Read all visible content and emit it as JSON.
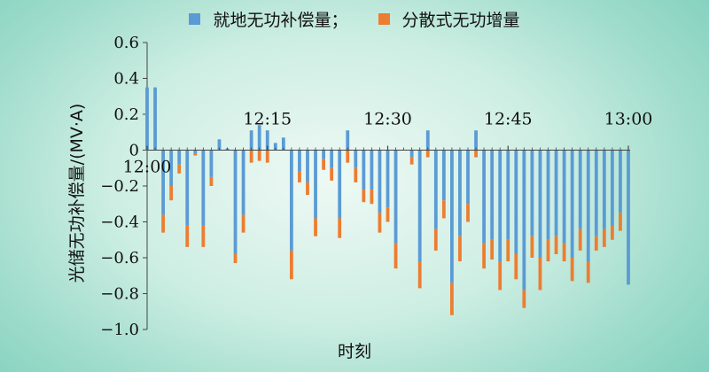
{
  "colors": {
    "local": "#5b9bd5",
    "distributed": "#ed7d31",
    "axis": "#444444"
  },
  "chart_data": {
    "type": "bar",
    "stacked": true,
    "ylabel": "光储无功补偿量/(MV·A)",
    "xlabel": "时刻",
    "ylim": [
      -1.0,
      0.6
    ],
    "yticks": [
      0.6,
      0.4,
      0.2,
      0,
      -0.2,
      -0.4,
      -0.6,
      -0.8,
      -1.0
    ],
    "ytick_labels": [
      "0.6",
      "0.4",
      "0.2",
      "0",
      "−0.2",
      "−0.4",
      "−0.6",
      "−0.8",
      "−1.0"
    ],
    "xlim": [
      0,
      60
    ],
    "xticks": [
      {
        "x": 0,
        "label": "12:00"
      },
      {
        "x": 15,
        "label": "12:15"
      },
      {
        "x": 30,
        "label": "12:30"
      },
      {
        "x": 45,
        "label": "12:45"
      },
      {
        "x": 60,
        "label": "13:00"
      }
    ],
    "legend_position": "top",
    "series": [
      {
        "name": "就地无功补偿量；",
        "values": [
          0.35,
          0.35,
          -0.36,
          -0.2,
          -0.08,
          -0.42,
          -0.02,
          -0.42,
          -0.15,
          0.06,
          0.01,
          -0.58,
          -0.36,
          0.11,
          0.14,
          0.11,
          0.04,
          0.07,
          -0.56,
          -0.12,
          -0.18,
          -0.38,
          -0.05,
          -0.1,
          -0.38,
          0.11,
          -0.1,
          -0.22,
          -0.22,
          -0.35,
          -0.32,
          -0.52,
          0.0,
          -0.04,
          -0.62,
          0.11,
          -0.44,
          -0.28,
          -0.74,
          -0.48,
          -0.3,
          0.11,
          -0.52,
          -0.5,
          -0.62,
          -0.5,
          -0.58,
          -0.78,
          -0.48,
          -0.6,
          -0.5,
          -0.48,
          -0.52,
          -0.6,
          -0.44,
          -0.62,
          -0.48,
          -0.44,
          -0.42,
          -0.35,
          -0.75
        ]
      },
      {
        "name": "分散式无功增量",
        "values": [
          0.0,
          0.0,
          -0.1,
          -0.08,
          -0.05,
          -0.12,
          -0.01,
          -0.12,
          -0.05,
          0.0,
          0.0,
          -0.05,
          -0.1,
          -0.07,
          -0.06,
          -0.07,
          0.0,
          0.0,
          -0.16,
          -0.06,
          -0.07,
          -0.1,
          -0.06,
          -0.07,
          -0.11,
          -0.07,
          -0.08,
          -0.07,
          -0.08,
          -0.11,
          -0.08,
          -0.14,
          0.0,
          -0.04,
          -0.15,
          -0.04,
          -0.12,
          -0.1,
          -0.18,
          -0.14,
          -0.1,
          -0.04,
          -0.14,
          -0.11,
          -0.16,
          -0.12,
          -0.14,
          -0.1,
          -0.12,
          -0.18,
          -0.12,
          -0.1,
          -0.1,
          -0.13,
          -0.12,
          -0.12,
          -0.08,
          -0.1,
          -0.08,
          -0.1,
          0.0
        ]
      }
    ]
  }
}
